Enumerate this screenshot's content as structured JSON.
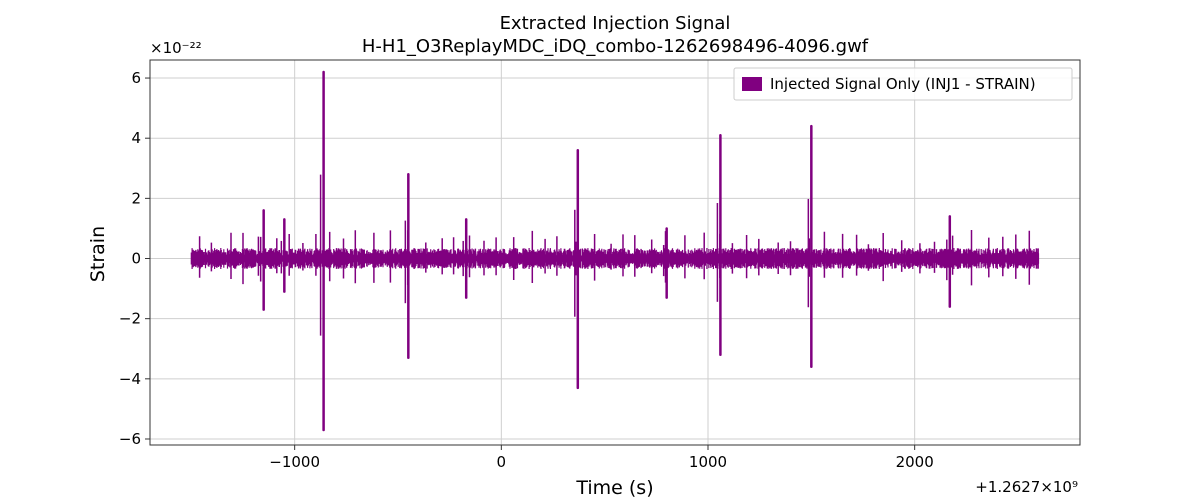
{
  "chart_data": {
    "type": "line",
    "title": "Extracted Injection Signal",
    "subtitle": "H-H1_O3ReplayMDC_iDQ_combo-1262698496-4096.gwf",
    "xlabel": "Time (s)",
    "ylabel": "Strain",
    "x_offset_label": "+1.2627×10⁹",
    "y_scale_label": "×10⁻²²",
    "xlim": [
      -1700,
      2800
    ],
    "ylim": [
      -6.2,
      6.6
    ],
    "x_ticks": [
      -1000,
      0,
      1000,
      2000
    ],
    "x_tick_labels": [
      "−1000",
      "0",
      "1000",
      "2000"
    ],
    "y_ticks": [
      -6,
      -4,
      -2,
      0,
      2,
      4,
      6
    ],
    "y_tick_labels": [
      "−6",
      "−4",
      "−2",
      "0",
      "2",
      "4",
      "6"
    ],
    "grid": true,
    "legend_position": "top-right",
    "series": [
      {
        "name": "Injected Signal Only (INJ1 - STRAIN)",
        "color": "#800080",
        "x_range": [
          -1500,
          2600
        ],
        "baseline_amplitude": 0.35,
        "spikes": [
          {
            "x": -1150,
            "y_max": 1.6,
            "y_min": -1.7
          },
          {
            "x": -1050,
            "y_max": 1.3,
            "y_min": -1.1
          },
          {
            "x": -860,
            "y_max": 6.2,
            "y_min": -5.7
          },
          {
            "x": -450,
            "y_max": 2.8,
            "y_min": -3.3
          },
          {
            "x": -170,
            "y_max": 1.3,
            "y_min": -1.3
          },
          {
            "x": 370,
            "y_max": 3.6,
            "y_min": -4.3
          },
          {
            "x": 800,
            "y_max": 1.0,
            "y_min": -1.3
          },
          {
            "x": 1060,
            "y_max": 4.1,
            "y_min": -3.2
          },
          {
            "x": 1500,
            "y_max": 4.4,
            "y_min": -3.6
          },
          {
            "x": 2170,
            "y_max": 1.4,
            "y_min": -1.6
          }
        ]
      }
    ]
  }
}
